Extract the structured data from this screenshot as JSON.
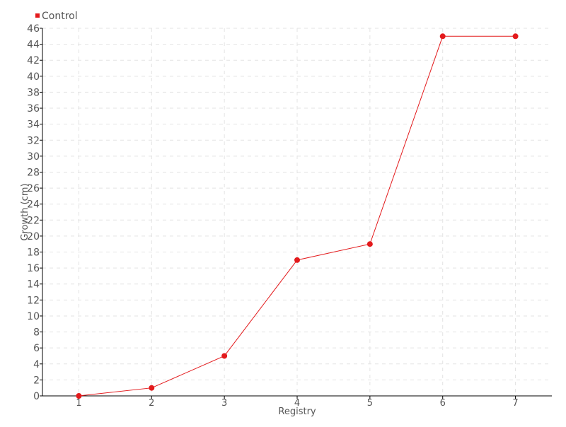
{
  "chart_data": {
    "type": "line",
    "title": "",
    "xlabel": "Registry",
    "ylabel": "Growth (cm)",
    "categories": [
      "1",
      "2",
      "3",
      "4",
      "5",
      "6",
      "7"
    ],
    "series": [
      {
        "name": "Control",
        "values": [
          0,
          1,
          5,
          17,
          19,
          45,
          45
        ],
        "color": "#e31a1c"
      }
    ],
    "ylim": [
      0,
      46
    ],
    "ytick_step": 2,
    "grid": true,
    "legend": "top-left"
  }
}
